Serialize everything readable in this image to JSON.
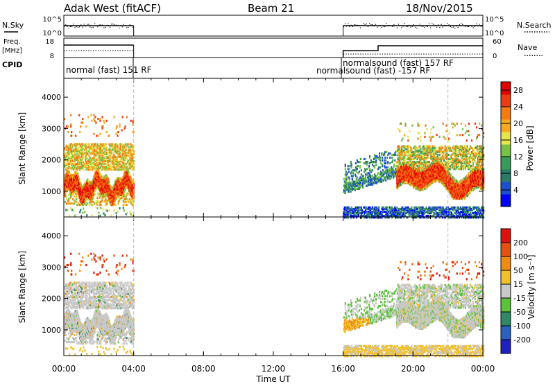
{
  "header": {
    "station": "Adak West (fitACF)",
    "beam": "Beam 21",
    "date": "18/Nov/2015"
  },
  "panels": {
    "nsky": {
      "label": "N.Sky",
      "ticks": [
        "10^5",
        "10^0"
      ]
    },
    "nsearch": {
      "label": "N.Search",
      "ticks": [
        "10^5",
        "10^0"
      ]
    },
    "freq": {
      "label_line1": "Freq.",
      "label_line2": "[MHz]",
      "ticks": [
        "18",
        "8"
      ]
    },
    "nave": {
      "label": "Nave",
      "ticks": [
        "60",
        "0"
      ]
    },
    "cpid": {
      "label": "CPID",
      "segments": [
        {
          "text": "normal (fast) 151 RF",
          "start": "00:00",
          "end": "04:00"
        },
        {
          "text": "normalsound (fast) 157 RF",
          "start": "16:00",
          "end": "24:00"
        },
        {
          "text": "normalsound (fast) -157 RF",
          "start": "16:00",
          "end": "24:00"
        }
      ]
    }
  },
  "chart_data": [
    {
      "type": "heatmap",
      "title": "",
      "xlabel": "Time UT",
      "ylabel": "Slant Range [km]",
      "x_ticks": [
        "00:00",
        "04:00",
        "08:00",
        "12:00",
        "16:00",
        "20:00",
        "00:00"
      ],
      "y_ticks": [
        1000,
        2000,
        3000,
        4000
      ],
      "ylim": [
        180,
        4600
      ],
      "colorbar": {
        "label": "Power [dB]",
        "ticks": [
          4,
          8,
          12,
          16,
          20,
          24,
          28
        ],
        "range": [
          0,
          30
        ],
        "colors": [
          "#0000ff",
          "#1e4fd0",
          "#2a7a6a",
          "#3a9a5a",
          "#77c244",
          "#e6e64c",
          "#f5aa1e",
          "#f57a10",
          "#ee3a10",
          "#e00000"
        ]
      },
      "data_intervals_ut": [
        [
          0,
          4
        ],
        [
          16,
          24
        ]
      ]
    },
    {
      "type": "heatmap",
      "title": "",
      "xlabel": "Time UT",
      "ylabel": "Slant Range [km]",
      "x_ticks": [
        "00:00",
        "04:00",
        "08:00",
        "12:00",
        "16:00",
        "20:00",
        "00:00"
      ],
      "y_ticks": [
        1000,
        2000,
        3000,
        4000
      ],
      "ylim": [
        180,
        4600
      ],
      "colorbar": {
        "label": "Velocity [m s⁻¹]",
        "ticks": [
          200,
          100,
          50,
          15,
          -15,
          -50,
          -100,
          -200
        ],
        "colors": [
          "#2020c0",
          "#2a60c0",
          "#2e8a66",
          "#5cc23a",
          "#c8c8c8",
          "#f2c028",
          "#f08a10",
          "#e85010",
          "#e01010"
        ]
      },
      "data_intervals_ut": [
        [
          0,
          4
        ],
        [
          16,
          24
        ]
      ]
    }
  ]
}
